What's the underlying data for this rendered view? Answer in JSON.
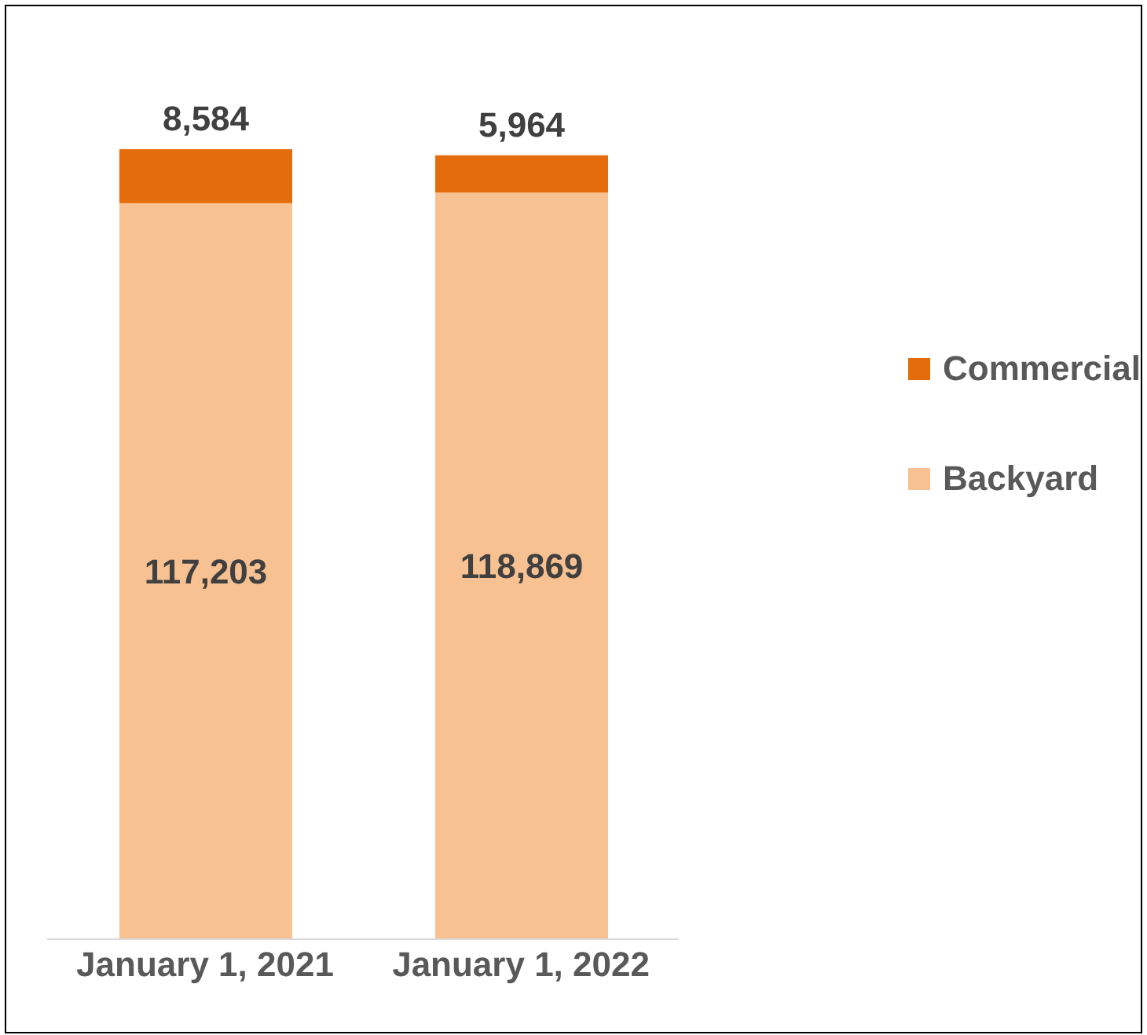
{
  "chart_data": {
    "type": "bar",
    "stacked": true,
    "categories": [
      "January 1, 2021",
      "January 1, 2022"
    ],
    "series": [
      {
        "name": "Backyard",
        "color": "#f8c191",
        "values": [
          117203,
          118869
        ],
        "value_labels": [
          "117,203",
          "118,869"
        ]
      },
      {
        "name": "Commercial",
        "color": "#e46c0a",
        "values": [
          8584,
          5964
        ],
        "value_labels": [
          "8,584",
          "5,964"
        ]
      }
    ],
    "legend": "right",
    "grid": false
  }
}
